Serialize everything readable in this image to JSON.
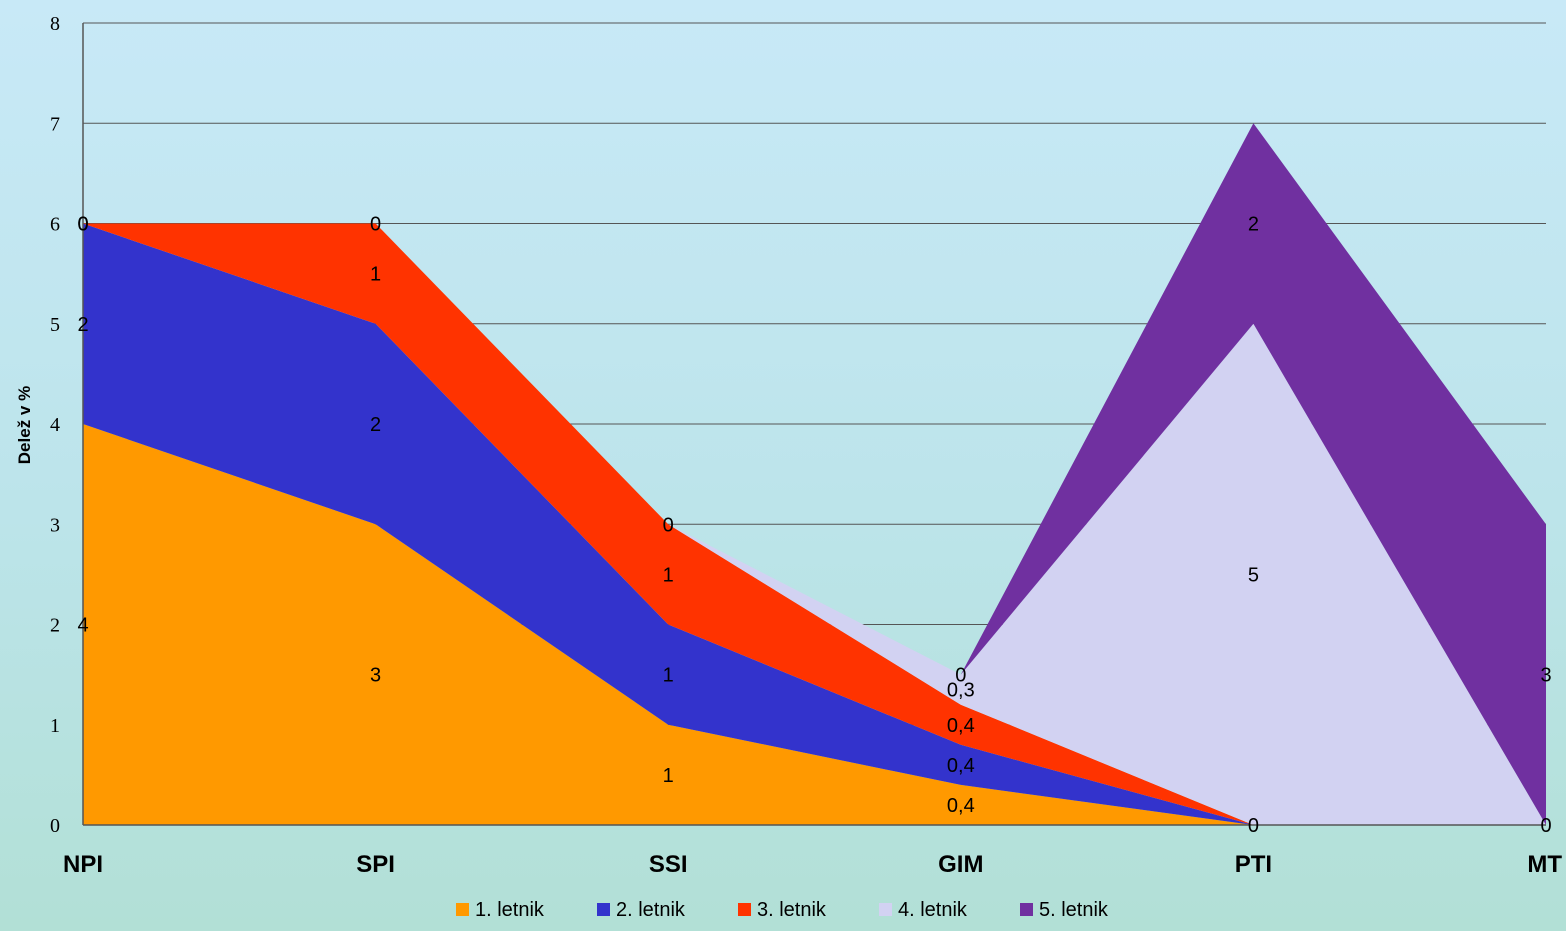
{
  "chart_data": {
    "type": "area",
    "stacked": true,
    "title": "",
    "xlabel": "",
    "ylabel": "Delež v %",
    "ylim": [
      0,
      8
    ],
    "yticks": [
      "0",
      "1",
      "2",
      "3",
      "4",
      "5",
      "6",
      "7",
      "8"
    ],
    "categories": [
      "NPI",
      "SPI",
      "SSI",
      "GIM",
      "PTI",
      "MT"
    ],
    "grid": true,
    "legend_position": "bottom",
    "series": [
      {
        "name": "1. letnik",
        "color": "#ff9900",
        "values": [
          4,
          3,
          1,
          0.4,
          0,
          0
        ],
        "labels": [
          "4",
          "3",
          "1",
          "0,4",
          "0",
          "0"
        ]
      },
      {
        "name": "2. letnik",
        "color": "#3333cc",
        "values": [
          2,
          2,
          1,
          0.4,
          0,
          0
        ],
        "labels": [
          "2",
          "2",
          "1",
          "0,4",
          "",
          ""
        ]
      },
      {
        "name": "3. letnik",
        "color": "#ff3300",
        "values": [
          0,
          1,
          1,
          0.4,
          0,
          0
        ],
        "labels": [
          "0",
          "1",
          "1",
          "0,4",
          "",
          ""
        ]
      },
      {
        "name": "4. letnik",
        "color": "#d2d2f2",
        "values": [
          0,
          0,
          0,
          0.3,
          5,
          0
        ],
        "labels": [
          "",
          "",
          "",
          "0,3",
          "5",
          ""
        ]
      },
      {
        "name": "5. letnik",
        "color": "#7030a0",
        "values": [
          0,
          0,
          0,
          0,
          2,
          3
        ],
        "labels": [
          "0",
          "0",
          "0",
          "0",
          "2",
          "3"
        ]
      }
    ]
  }
}
